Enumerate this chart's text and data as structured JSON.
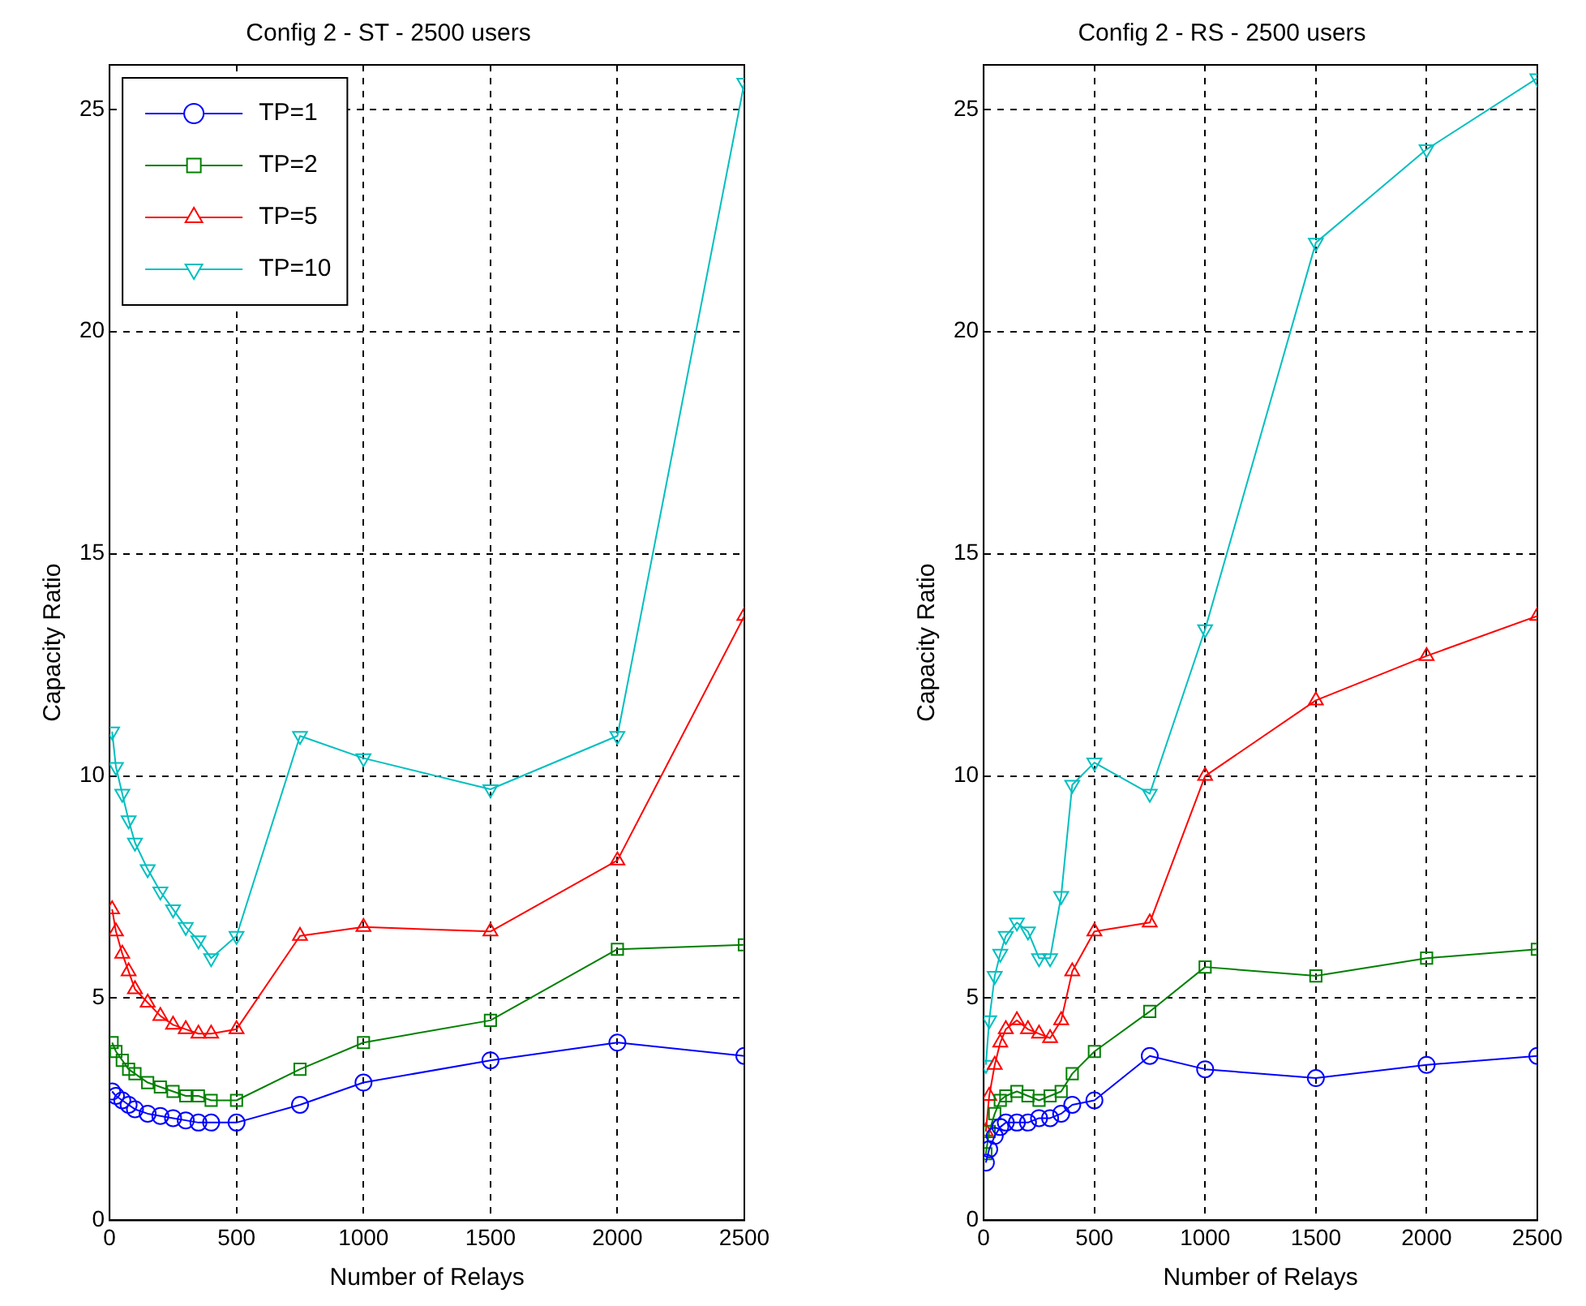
{
  "chart_data": [
    {
      "type": "line",
      "title": "Config 2 - ST - 2500 users",
      "xlabel": "Number of Relays",
      "ylabel": "Capacity Ratio",
      "x": [
        10,
        25,
        50,
        75,
        100,
        150,
        200,
        250,
        300,
        350,
        400,
        500,
        750,
        1000,
        1500,
        2000,
        2500
      ],
      "series": [
        {
          "name": "TP=1",
          "color": "#0000ff",
          "marker": "circle",
          "values": [
            2.9,
            2.8,
            2.7,
            2.6,
            2.5,
            2.4,
            2.35,
            2.3,
            2.25,
            2.2,
            2.2,
            2.2,
            2.6,
            3.1,
            3.6,
            4.0,
            3.7
          ]
        },
        {
          "name": "TP=2",
          "color": "#008000",
          "marker": "square",
          "values": [
            4.0,
            3.8,
            3.6,
            3.4,
            3.3,
            3.1,
            3.0,
            2.9,
            2.8,
            2.8,
            2.7,
            2.7,
            3.4,
            4.0,
            4.5,
            6.1,
            6.2
          ]
        },
        {
          "name": "TP=5",
          "color": "#ff0000",
          "marker": "triangle",
          "values": [
            7.0,
            6.5,
            6.0,
            5.6,
            5.2,
            4.9,
            4.6,
            4.4,
            4.3,
            4.2,
            4.2,
            4.3,
            6.4,
            6.6,
            6.5,
            8.1,
            13.6
          ]
        },
        {
          "name": "TP=10",
          "color": "#00bfbf",
          "marker": "triangle-down",
          "values": [
            11.0,
            10.2,
            9.6,
            9.0,
            8.5,
            7.9,
            7.4,
            7.0,
            6.6,
            6.3,
            5.9,
            6.4,
            10.9,
            10.4,
            9.7,
            10.9,
            25.6
          ]
        }
      ],
      "xlim": [
        0,
        2500
      ],
      "xticks": [
        0,
        500,
        1000,
        1500,
        2000,
        2500
      ],
      "ylim": [
        0,
        26
      ],
      "yticks": [
        0,
        5,
        10,
        15,
        20,
        25
      ],
      "grid": true,
      "line_style": "solid",
      "legend": "top left"
    },
    {
      "type": "line",
      "title": "Config 2 - RS - 2500 users",
      "xlabel": "Number of Relays",
      "ylabel": "Capacity Ratio",
      "x": [
        10,
        25,
        50,
        75,
        100,
        150,
        200,
        250,
        300,
        350,
        400,
        500,
        750,
        1000,
        1500,
        2000,
        2500
      ],
      "series": [
        {
          "color": "#0000ff",
          "marker": "circle",
          "values": [
            1.3,
            1.6,
            1.9,
            2.1,
            2.2,
            2.2,
            2.2,
            2.3,
            2.3,
            2.4,
            2.6,
            2.7,
            3.7,
            3.4,
            3.2,
            3.5,
            3.7
          ]
        },
        {
          "color": "#008000",
          "marker": "square",
          "values": [
            1.5,
            2.0,
            2.4,
            2.7,
            2.8,
            2.9,
            2.8,
            2.7,
            2.8,
            2.9,
            3.3,
            3.8,
            4.7,
            5.7,
            5.5,
            5.9,
            6.1
          ]
        },
        {
          "color": "#ff0000",
          "marker": "triangle",
          "values": [
            2.0,
            2.8,
            3.5,
            4.0,
            4.3,
            4.5,
            4.3,
            4.2,
            4.1,
            4.5,
            5.6,
            6.5,
            6.7,
            10.0,
            11.7,
            12.7,
            13.6
          ]
        },
        {
          "color": "#00bfbf",
          "marker": "triangle-down",
          "values": [
            3.5,
            4.5,
            5.5,
            6.0,
            6.4,
            6.7,
            6.5,
            5.9,
            5.9,
            7.3,
            9.8,
            10.3,
            9.6,
            13.3,
            22.0,
            24.1,
            25.7
          ]
        }
      ],
      "xlim": [
        0,
        2500
      ],
      "xticks": [
        0,
        500,
        1000,
        1500,
        2000,
        2500
      ],
      "ylim": [
        0,
        26
      ],
      "yticks": [
        0,
        5,
        10,
        15,
        20,
        25
      ],
      "grid": true,
      "line_style": "solid",
      "legend": false
    }
  ]
}
